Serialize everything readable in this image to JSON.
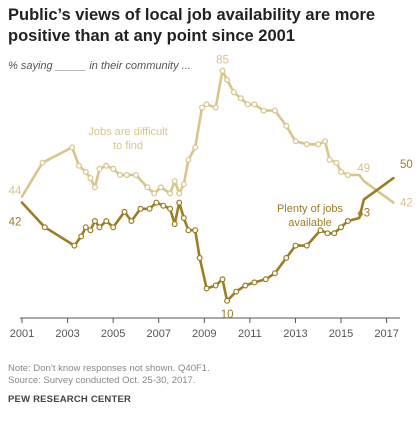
{
  "title": "Public’s views of local job availability are more positive than at any point since 2001",
  "subtitle": "% saying _____ in their community ...",
  "note": "Note: Don’t know responses not shown. Q40F1.",
  "source": "Source: Survey conducted Oct. 25-30, 2017.",
  "brand": "PEW RESEARCH CENTER",
  "chart_data": {
    "type": "line",
    "xlim": [
      2001,
      2017.5
    ],
    "ylim": [
      0,
      95
    ],
    "x_ticks": [
      "2001",
      "2003",
      "2005",
      "2007",
      "2009",
      "2011",
      "2013",
      "2015",
      "2017"
    ],
    "grid": false,
    "series": [
      {
        "name": "Jobs are difficult to find",
        "color": "#d9c48a",
        "label_lines": [
          "Jobs are difficult",
          "to find"
        ],
        "points": [
          [
            2001.0,
            44
          ],
          [
            2001.9,
            55
          ],
          [
            2003.2,
            60
          ],
          [
            2003.5,
            54
          ],
          [
            2003.8,
            52
          ],
          [
            2004.0,
            50
          ],
          [
            2004.2,
            47
          ],
          [
            2004.4,
            53
          ],
          [
            2004.7,
            54
          ],
          [
            2005.0,
            53
          ],
          [
            2005.3,
            51
          ],
          [
            2005.6,
            51
          ],
          [
            2006.0,
            51
          ],
          [
            2006.5,
            47
          ],
          [
            2006.8,
            45
          ],
          [
            2007.1,
            47
          ],
          [
            2007.5,
            45
          ],
          [
            2007.7,
            49
          ],
          [
            2007.9,
            45
          ],
          [
            2008.1,
            48
          ],
          [
            2008.3,
            56
          ],
          [
            2008.6,
            60
          ],
          [
            2008.9,
            73
          ],
          [
            2009.1,
            74
          ],
          [
            2009.5,
            73
          ],
          [
            2009.8,
            85
          ],
          [
            2010.0,
            82
          ],
          [
            2010.3,
            78
          ],
          [
            2010.6,
            76
          ],
          [
            2010.9,
            74
          ],
          [
            2011.2,
            74
          ],
          [
            2011.6,
            72
          ],
          [
            2012.1,
            72
          ],
          [
            2012.6,
            67
          ],
          [
            2013.0,
            62
          ],
          [
            2013.5,
            61
          ],
          [
            2014.0,
            61
          ],
          [
            2014.3,
            62
          ],
          [
            2014.5,
            56
          ],
          [
            2014.8,
            55
          ],
          [
            2015.0,
            52
          ],
          [
            2015.3,
            51
          ],
          [
            2015.8,
            51
          ],
          [
            2016.0,
            49
          ],
          [
            2017.3,
            42
          ]
        ],
        "labeled_values": [
          {
            "x": 2001.0,
            "y": 44,
            "text": "44"
          },
          {
            "x": 2009.8,
            "y": 85,
            "text": "85"
          },
          {
            "x": 2016.0,
            "y": 49,
            "text": "49"
          },
          {
            "x": 2017.3,
            "y": 42,
            "text": "42"
          }
        ]
      },
      {
        "name": "Plenty of jobs available",
        "color": "#9c7d22",
        "label_lines": [
          "Plenty of jobs",
          "available"
        ],
        "points": [
          [
            2001.0,
            42
          ],
          [
            2002.0,
            34
          ],
          [
            2003.3,
            28
          ],
          [
            2003.6,
            31
          ],
          [
            2003.8,
            34
          ],
          [
            2004.0,
            33
          ],
          [
            2004.2,
            36
          ],
          [
            2004.4,
            34
          ],
          [
            2004.7,
            36
          ],
          [
            2005.0,
            34
          ],
          [
            2005.5,
            39
          ],
          [
            2005.8,
            36
          ],
          [
            2006.2,
            40
          ],
          [
            2006.6,
            40
          ],
          [
            2006.9,
            42
          ],
          [
            2007.2,
            41
          ],
          [
            2007.5,
            40
          ],
          [
            2007.7,
            35
          ],
          [
            2007.9,
            42
          ],
          [
            2008.1,
            37
          ],
          [
            2008.3,
            33
          ],
          [
            2008.6,
            33
          ],
          [
            2008.8,
            24
          ],
          [
            2009.1,
            14
          ],
          [
            2009.5,
            15
          ],
          [
            2009.8,
            17
          ],
          [
            2010.0,
            10
          ],
          [
            2010.4,
            13
          ],
          [
            2010.8,
            15
          ],
          [
            2011.2,
            16
          ],
          [
            2011.7,
            17
          ],
          [
            2012.1,
            19
          ],
          [
            2012.6,
            24
          ],
          [
            2013.0,
            28
          ],
          [
            2013.5,
            28
          ],
          [
            2014.1,
            33
          ],
          [
            2014.4,
            32
          ],
          [
            2014.7,
            32
          ],
          [
            2015.0,
            34
          ],
          [
            2015.3,
            36
          ],
          [
            2015.8,
            37
          ],
          [
            2016.0,
            43
          ],
          [
            2017.3,
            50
          ]
        ],
        "labeled_values": [
          {
            "x": 2001.0,
            "y": 42,
            "text": "42"
          },
          {
            "x": 2010.0,
            "y": 10,
            "text": "10"
          },
          {
            "x": 2016.0,
            "y": 43,
            "text": "43"
          },
          {
            "x": 2017.3,
            "y": 50,
            "text": "50"
          }
        ]
      }
    ]
  }
}
